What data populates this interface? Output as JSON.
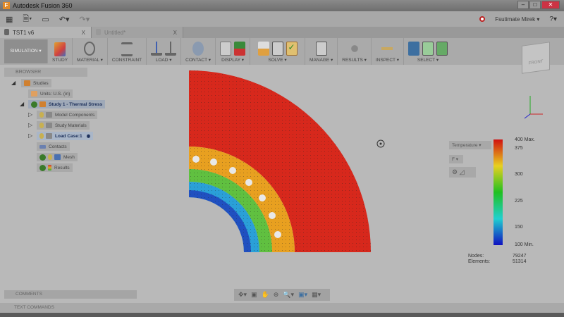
{
  "window": {
    "title": "Autodesk Fusion 360"
  },
  "qat": {
    "user": "Fsutimate Mirek ▾",
    "help": "?▾"
  },
  "tabs": [
    {
      "label": "TST1 v6",
      "close": "X"
    },
    {
      "label": "Untitled*",
      "close": "X"
    }
  ],
  "ribbon": {
    "workspace": "SIMULATION ▾",
    "groups": [
      "STUDY",
      "MATERIAL ▾",
      "CONSTRAINT",
      "LOAD ▾",
      "CONTACT ▾",
      "DISPLAY ▾",
      "SOLVE ▾",
      "MANAGE ▾",
      "RESULTS ▾",
      "INSPECT ▾",
      "SELECT ▾"
    ]
  },
  "viewcube": {
    "label": "FRONT"
  },
  "browser": {
    "title": "BROWSER",
    "items": [
      "Studies",
      "Units: U.S. (in)",
      "Study 1 - Thermal Stress",
      "Model Components",
      "Study Materials",
      "Load Case:1",
      "Contacts",
      "Mesh",
      "Results"
    ]
  },
  "comments": {
    "title": "COMMENTS"
  },
  "text_commands": {
    "title": "TEXT COMMANDS"
  },
  "legend": {
    "result_type": "Temperature ▾",
    "unit": "F ▾",
    "ticks": [
      "400 Max.",
      "375",
      "300",
      "225",
      "150",
      "100 Min."
    ],
    "max": 400,
    "min": 100
  },
  "stats": {
    "nodes_label": "Nodes:",
    "nodes": "79247",
    "elements_label": "Elements:",
    "elements": "51314"
  },
  "colors": {
    "accent_select": "#3d6fa0",
    "check": "#3a7a2a",
    "record": "#b22222"
  }
}
